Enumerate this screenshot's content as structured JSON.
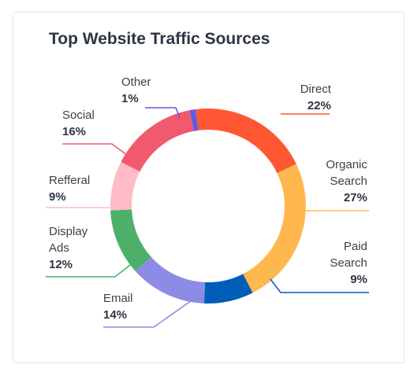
{
  "chart_data": {
    "type": "pie",
    "title": "Top Website Traffic Sources",
    "slices": [
      {
        "label": [
          "Direct"
        ],
        "value": 22,
        "value_label": "22%",
        "color": "#ff5733"
      },
      {
        "label": [
          "Organic",
          "Search"
        ],
        "value": 27,
        "value_label": "27%",
        "color": "#ffb84d"
      },
      {
        "label": [
          "Paid",
          "Search"
        ],
        "value": 9,
        "value_label": "9%",
        "color": "#005eb8"
      },
      {
        "label": [
          "Email"
        ],
        "value": 14,
        "value_label": "14%",
        "color": "#8c8ce6"
      },
      {
        "label": [
          "Display",
          "Ads"
        ],
        "value": 12,
        "value_label": "12%",
        "color": "#4cb06a"
      },
      {
        "label": [
          "Refferal"
        ],
        "value": 9,
        "value_label": "9%",
        "color": "#ffbbc8"
      },
      {
        "label": [
          "Social"
        ],
        "value": 16,
        "value_label": "16%",
        "color": "#f0596e"
      },
      {
        "label": [
          "Other"
        ],
        "value": 1,
        "value_label": "1%",
        "color": "#5b5be6"
      }
    ],
    "legend": "none",
    "style": "donut"
  }
}
